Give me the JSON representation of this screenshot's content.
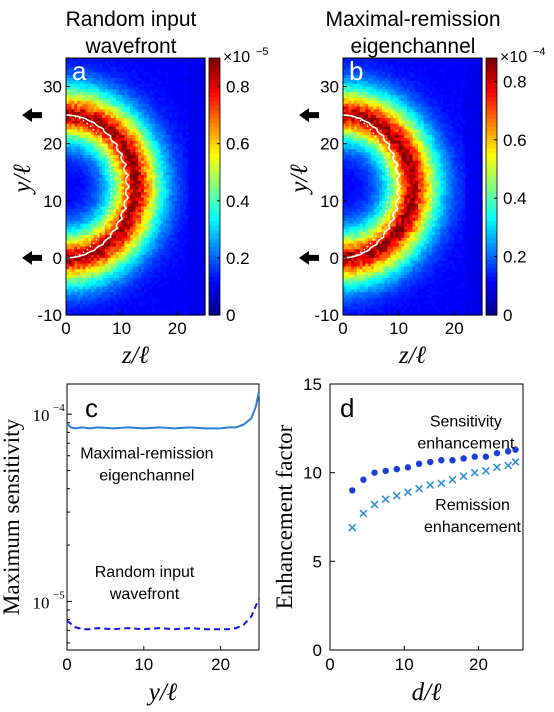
{
  "colormap": [
    "#00008f",
    "#0000ff",
    "#0080ff",
    "#00ffff",
    "#80ff80",
    "#ffff00",
    "#ff8000",
    "#ff0000",
    "#800000"
  ],
  "chart_data": [
    {
      "type": "heatmap",
      "panel_label": "a",
      "title": "Random input wavefront",
      "xlabel": "z/ℓ",
      "ylabel": "y/ℓ",
      "xlim": [
        0,
        25
      ],
      "ylim": [
        -10,
        35
      ],
      "x_ticks": [
        "0",
        "10",
        "20"
      ],
      "y_ticks": [
        "-10",
        "0",
        "10",
        "20",
        "30"
      ],
      "colorbar": {
        "multiplier": "×10",
        "exponent": "−5",
        "range": [
          0,
          0.9
        ],
        "ticks": [
          "0",
          "0.2",
          "0.4",
          "0.6",
          "0.8"
        ]
      },
      "input_arrow_y": 0,
      "output_arrow_y": 25,
      "banana": {
        "peak_depth_z": 9,
        "contour_depth_z": 11
      }
    },
    {
      "type": "heatmap",
      "panel_label": "b",
      "title": "Maximal-remission eigenchannel",
      "xlabel": "z/ℓ",
      "ylabel": "y/ℓ",
      "xlim": [
        0,
        25
      ],
      "ylim": [
        -10,
        35
      ],
      "x_ticks": [
        "0",
        "10",
        "20"
      ],
      "y_ticks": [
        "-10",
        "0",
        "10",
        "20",
        "30"
      ],
      "colorbar": {
        "multiplier": "×10",
        "exponent": "−4",
        "range": [
          0,
          0.88
        ],
        "ticks": [
          "0",
          "0.2",
          "0.4",
          "0.6",
          "0.8"
        ]
      },
      "input_arrow_y": 0,
      "output_arrow_y": 25,
      "banana": {
        "peak_depth_z": 9,
        "contour_depth_z": 10
      }
    },
    {
      "type": "line",
      "panel_label": "c",
      "xlabel": "y/ℓ",
      "ylabel": "Maximum sensitivity",
      "y_scale": "log",
      "xlim": [
        0,
        25
      ],
      "ylim": [
        5.5e-06,
        0.000145
      ],
      "x_ticks": [
        "0",
        "10",
        "20"
      ],
      "series": [
        {
          "name": "Maximal-remission eigenchannel",
          "style": "solid",
          "color": "#2b7fdd",
          "x": [
            0,
            0.5,
            1,
            2,
            3,
            4,
            6,
            8,
            10,
            12,
            14,
            16,
            18,
            20,
            21,
            22,
            23,
            24,
            24.6,
            25
          ],
          "values": [
            8.9e-05,
            8.5e-05,
            8.4e-05,
            8.5e-05,
            8.4e-05,
            8.5e-05,
            8.4e-05,
            8.5e-05,
            8.4e-05,
            8.5e-05,
            8.4e-05,
            8.5e-05,
            8.4e-05,
            8.4e-05,
            8.5e-05,
            8.5e-05,
            8.8e-05,
            9.5e-05,
            0.00011,
            0.000132
          ]
        },
        {
          "name": "Random input wavefront",
          "style": "dashed",
          "color": "#1515e8",
          "x": [
            0,
            0.5,
            1,
            2,
            3,
            4,
            6,
            8,
            10,
            12,
            14,
            16,
            18,
            20,
            21,
            22,
            23,
            24,
            24.6,
            25
          ],
          "values": [
            7.9e-06,
            7.6e-06,
            7.3e-06,
            7.1e-06,
            7.1e-06,
            7.2e-06,
            7.1e-06,
            7.2e-06,
            7.1e-06,
            7.2e-06,
            7.1e-06,
            7.2e-06,
            7.1e-06,
            7.1e-06,
            7.1e-06,
            7.2e-06,
            7.5e-06,
            8.3e-06,
            9.5e-06,
            1.03e-05
          ]
        }
      ],
      "annotations": [
        {
          "lines": [
            "Maximal-remission",
            "eigenchannel"
          ],
          "x": 10.4,
          "y": 5.8e-05
        },
        {
          "lines": [
            "Random input",
            "wavefront"
          ],
          "x": 10.1,
          "y": 1.35e-05
        }
      ]
    },
    {
      "type": "scatter",
      "panel_label": "d",
      "xlabel": "d/ℓ",
      "ylabel": "Enhancement factor",
      "xlim": [
        0,
        26
      ],
      "ylim": [
        0,
        15
      ],
      "x_ticks": [
        "0",
        "10",
        "20"
      ],
      "y_ticks": [
        "0",
        "5",
        "10",
        "15"
      ],
      "series": [
        {
          "name": "Sensitivity enhancement",
          "marker": "dot",
          "color": "#1a3fd9",
          "x": [
            3,
            4.5,
            6,
            7.5,
            9,
            10.5,
            12,
            13.5,
            15,
            16.5,
            18,
            19.5,
            21,
            22.5,
            24,
            25
          ],
          "values": [
            9.0,
            9.6,
            10.0,
            10.1,
            10.2,
            10.3,
            10.5,
            10.6,
            10.7,
            10.7,
            10.8,
            10.9,
            10.9,
            11.1,
            11.2,
            11.3
          ]
        },
        {
          "name": "Remission enhancement",
          "marker": "x",
          "color": "#2f8fe0",
          "x": [
            3,
            4.5,
            6,
            7.5,
            9,
            10.5,
            12,
            13.5,
            15,
            16.5,
            18,
            19.5,
            21,
            22.5,
            24,
            25
          ],
          "values": [
            6.9,
            7.7,
            8.2,
            8.5,
            8.7,
            8.9,
            9.1,
            9.3,
            9.4,
            9.6,
            9.8,
            10.0,
            10.1,
            10.3,
            10.4,
            10.6
          ]
        }
      ],
      "annotations": [
        {
          "lines": [
            "Sensitivity",
            "enhancement"
          ],
          "x": 18.3,
          "y": 12.6
        },
        {
          "lines": [
            "Remission",
            "enhancement"
          ],
          "x": 19.2,
          "y": 7.9
        }
      ]
    }
  ]
}
